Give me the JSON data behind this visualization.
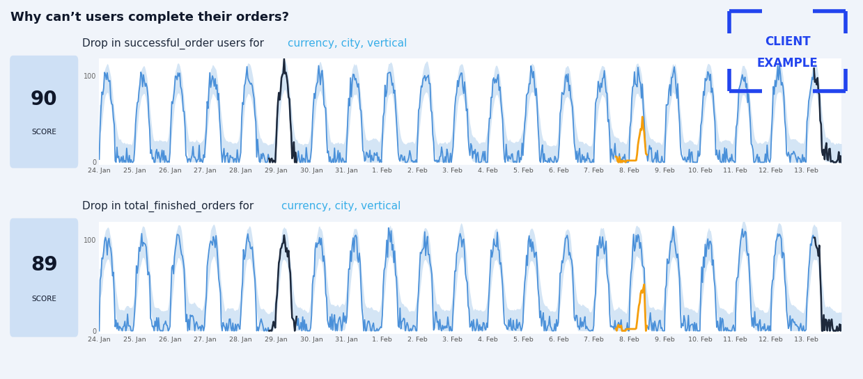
{
  "title": "Why can’t users complete their orders?",
  "background_color": "#f0f4fa",
  "chart_bg": "#ffffff",
  "panel1": {
    "score": "90",
    "score_label": "SCORE",
    "description_plain": "Drop in successful_order users for ",
    "description_colored": "currency, city, vertical",
    "yticks": [
      0,
      100
    ],
    "color_line": "#4a90d9",
    "color_band": "#b8d4ef",
    "color_anomaly": "#f59e0b",
    "color_dark": "#1e293b"
  },
  "panel2": {
    "score": "89",
    "score_label": "SCORE",
    "description_plain": "Drop in total_finished_orders for ",
    "description_colored": "currency, city, vertical",
    "yticks": [
      0,
      100
    ],
    "color_line": "#4a90d9",
    "color_band": "#b8d4ef",
    "color_anomaly": "#f59e0b",
    "color_dark": "#1e293b"
  },
  "xticklabels": [
    "24. Jan",
    "25. Jan",
    "26. Jan",
    "27. Jan",
    "28. Jan",
    "29. Jan",
    "30. Jan",
    "31. Jan",
    "1. Feb",
    "2. Feb",
    "3. Feb",
    "4. Feb",
    "5. Feb",
    "6. Feb",
    "7. Feb",
    "8. Feb",
    "9. Feb",
    "10. Feb",
    "11. Feb",
    "12. Feb",
    "13. Feb"
  ],
  "client_example_color": "#2244ee",
  "title_color": "#0f172a",
  "desc_text_color": "#1e293b",
  "highlight_color": "#38aee8",
  "score_box_color": "#cee0f5"
}
